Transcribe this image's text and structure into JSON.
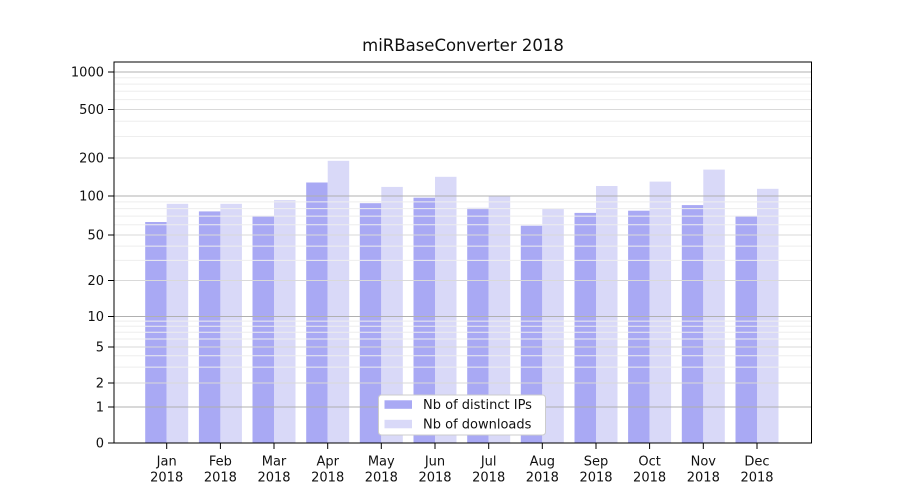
{
  "chart_data": {
    "type": "bar",
    "title": "miRBaseConverter 2018",
    "x": {
      "months": [
        "Jan",
        "Feb",
        "Mar",
        "Apr",
        "May",
        "Jun",
        "Jul",
        "Aug",
        "Sep",
        "Oct",
        "Nov",
        "Dec"
      ],
      "year": "2018"
    },
    "y_axis": {
      "scale": "symlog",
      "ticks": [
        0,
        1,
        2,
        5,
        10,
        20,
        50,
        100,
        200,
        500,
        1000
      ],
      "range": [
        0,
        1000
      ],
      "grid": true
    },
    "series": [
      {
        "name": "Nb of distinct IPs",
        "color": "#a9a9f4",
        "values": [
          63,
          76,
          70,
          128,
          88,
          97,
          81,
          59,
          74,
          77,
          85,
          70
        ]
      },
      {
        "name": "Nb of downloads",
        "color": "#d9d9f8",
        "values": [
          87,
          87,
          93,
          190,
          118,
          142,
          101,
          80,
          120,
          130,
          162,
          114
        ]
      }
    ],
    "legend": {
      "position": "lower-center",
      "background": "#ffffff",
      "border_color": "#cccccc"
    },
    "grid_colors": {
      "major": "#b0b0b0",
      "labeled_minor": "#d9d9d9",
      "minor": "#eeeeee"
    },
    "spine_color": "#000000"
  }
}
